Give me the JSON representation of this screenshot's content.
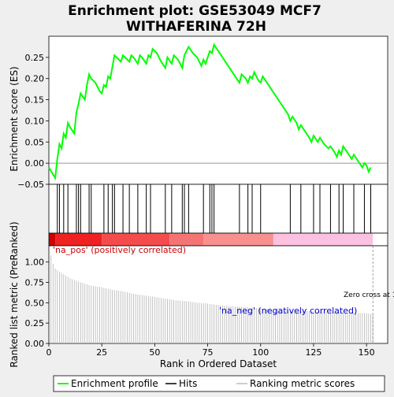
{
  "title_line1": "Enrichment plot: GSE53049 MCF7",
  "title_line2": "WITHAFERINA 72H",
  "es_panel": {
    "ylabel": "Enrichment score (ES)",
    "yticks": [
      -0.05,
      0.0,
      0.05,
      0.1,
      0.15,
      0.2,
      0.25
    ],
    "ytick_labels": [
      "−0.05",
      "0.00",
      "0.05",
      "0.10",
      "0.15",
      "0.20",
      "0.25"
    ],
    "ylim": [
      -0.05,
      0.3
    ],
    "line_color": "#00ff00"
  },
  "rank_panel": {
    "ylabel": "Ranked list metric (PreRanked)",
    "xlabel": "Rank in Ordered Dataset",
    "xticks": [
      0,
      25,
      50,
      75,
      100,
      125,
      150
    ],
    "yticks": [
      0.0,
      0.25,
      0.5,
      0.75,
      1.0
    ],
    "ytick_labels": [
      "0.00",
      "0.25",
      "0.50",
      "0.75",
      "1.00"
    ],
    "xlim": [
      0,
      160
    ],
    "ylim": [
      0,
      1.2
    ],
    "pos_label": "'na_pos' (positively correlated)",
    "neg_label": "'na_neg' (negatively correlated)",
    "zero_cross_label": "Zero cross at 153",
    "zero_cross": 153,
    "pos_label_color": "#cc0000",
    "neg_label_color": "#0000cc"
  },
  "legend": {
    "items": [
      {
        "label": "Enrichment profile",
        "color": "#00ff00"
      },
      {
        "label": "Hits",
        "color": "#000000"
      },
      {
        "label": "Ranking metric scores",
        "color": "#bbbbbb"
      }
    ]
  },
  "chart_data": {
    "type": "line",
    "n_genes": 153,
    "es_profile": {
      "x": [
        0,
        3,
        4,
        5,
        6,
        7,
        8,
        9,
        10,
        12,
        13,
        14,
        15,
        17,
        18,
        19,
        20,
        22,
        24,
        25,
        26,
        27,
        28,
        29,
        31,
        32,
        34,
        35,
        36,
        38,
        39,
        40,
        42,
        43,
        44,
        46,
        47,
        48,
        49,
        51,
        53,
        55,
        56,
        58,
        59,
        61,
        63,
        64,
        65,
        66,
        68,
        70,
        72,
        73,
        74,
        75,
        76,
        77,
        78,
        80,
        82,
        84,
        86,
        88,
        90,
        91,
        93,
        94,
        95,
        96,
        97,
        99,
        100,
        101,
        103,
        105,
        107,
        109,
        111,
        113,
        114,
        115,
        117,
        118,
        119,
        121,
        123,
        124,
        125,
        127,
        128,
        130,
        132,
        133,
        135,
        136,
        137,
        138,
        139,
        141,
        143,
        144,
        146,
        148,
        149,
        150,
        151,
        152
      ],
      "y": [
        -0.01,
        -0.035,
        0.01,
        0.045,
        0.035,
        0.07,
        0.06,
        0.095,
        0.085,
        0.07,
        0.12,
        0.14,
        0.165,
        0.15,
        0.185,
        0.21,
        0.2,
        0.19,
        0.17,
        0.165,
        0.185,
        0.18,
        0.205,
        0.2,
        0.255,
        0.25,
        0.24,
        0.255,
        0.25,
        0.24,
        0.255,
        0.25,
        0.235,
        0.255,
        0.25,
        0.235,
        0.255,
        0.25,
        0.27,
        0.26,
        0.24,
        0.225,
        0.25,
        0.235,
        0.255,
        0.245,
        0.225,
        0.255,
        0.265,
        0.275,
        0.26,
        0.25,
        0.23,
        0.245,
        0.235,
        0.25,
        0.265,
        0.26,
        0.28,
        0.265,
        0.25,
        0.235,
        0.22,
        0.205,
        0.19,
        0.21,
        0.2,
        0.19,
        0.205,
        0.2,
        0.215,
        0.195,
        0.19,
        0.205,
        0.19,
        0.175,
        0.16,
        0.145,
        0.13,
        0.115,
        0.1,
        0.11,
        0.095,
        0.08,
        0.09,
        0.075,
        0.06,
        0.05,
        0.065,
        0.05,
        0.06,
        0.045,
        0.035,
        0.04,
        0.025,
        0.015,
        0.03,
        0.02,
        0.04,
        0.025,
        0.01,
        0.02,
        0.005,
        -0.01,
        0.0,
        -0.005,
        -0.02,
        -0.01
      ]
    },
    "hits": [
      4,
      5,
      7,
      9,
      13,
      14,
      15,
      19,
      20,
      26,
      28,
      30,
      31,
      35,
      38,
      42,
      46,
      48,
      55,
      58,
      63,
      64,
      66,
      73,
      76,
      77,
      78,
      90,
      94,
      96,
      100,
      114,
      119,
      125,
      128,
      133,
      137,
      139,
      144,
      149,
      152
    ],
    "ranking_metric": {
      "x": [
        1,
        2,
        3,
        5,
        7,
        10,
        15,
        20,
        25,
        30,
        35,
        40,
        45,
        50,
        55,
        60,
        65,
        70,
        75,
        80,
        85,
        90,
        95,
        100,
        110,
        120,
        130,
        140,
        150,
        153
      ],
      "y": [
        1.08,
        0.98,
        0.92,
        0.88,
        0.85,
        0.8,
        0.75,
        0.71,
        0.69,
        0.66,
        0.64,
        0.61,
        0.59,
        0.57,
        0.55,
        0.53,
        0.52,
        0.5,
        0.49,
        0.47,
        0.46,
        0.45,
        0.44,
        0.43,
        0.41,
        0.4,
        0.39,
        0.38,
        0.37,
        0.36
      ]
    }
  }
}
